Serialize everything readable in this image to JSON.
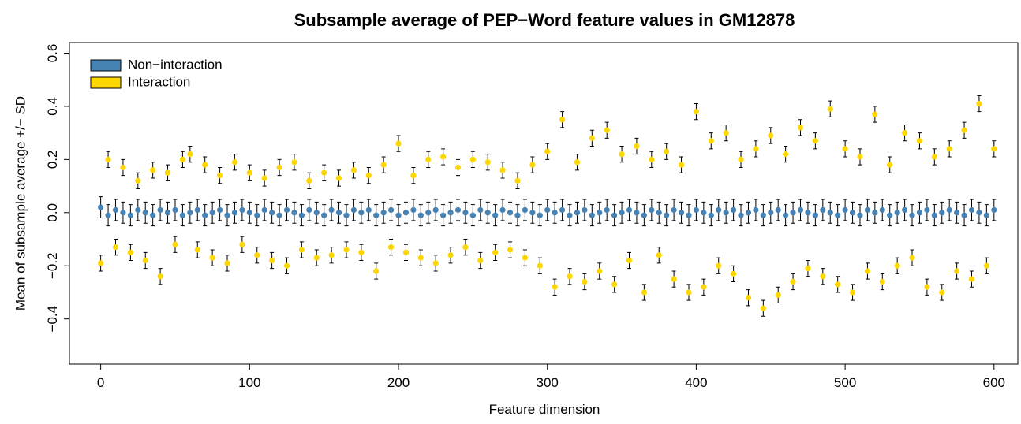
{
  "chart_data": {
    "type": "errorbar-scatter",
    "title": "Subsample average of PEP−Word feature values in GM12878",
    "xlabel": "Feature dimension",
    "ylabel": "Mean of subsample average +/− SD",
    "legend": "top-left",
    "xlim": [
      -21,
      616
    ],
    "xticks": [
      0,
      100,
      200,
      300,
      400,
      500,
      600
    ],
    "ylim": [
      -0.57,
      0.64
    ],
    "yticks": [
      {
        "value": -0.4,
        "label": "−0.4"
      },
      {
        "value": -0.2,
        "label": "−0.2"
      },
      {
        "value": 0,
        "label": "0.0"
      },
      0.2,
      0.4,
      0.6
    ],
    "x": [
      0,
      5,
      10,
      15,
      20,
      25,
      30,
      35,
      40,
      45,
      50,
      55,
      60,
      65,
      70,
      75,
      80,
      85,
      90,
      95,
      100,
      105,
      110,
      115,
      120,
      125,
      130,
      135,
      140,
      145,
      150,
      155,
      160,
      165,
      170,
      175,
      180,
      185,
      190,
      195,
      200,
      205,
      210,
      215,
      220,
      225,
      230,
      235,
      240,
      245,
      250,
      255,
      260,
      265,
      270,
      275,
      280,
      285,
      290,
      295,
      300,
      305,
      310,
      315,
      320,
      325,
      330,
      335,
      340,
      345,
      350,
      355,
      360,
      365,
      370,
      375,
      380,
      385,
      390,
      395,
      400,
      405,
      410,
      415,
      420,
      425,
      430,
      435,
      440,
      445,
      450,
      455,
      460,
      465,
      470,
      475,
      480,
      485,
      490,
      495,
      500,
      505,
      510,
      515,
      520,
      525,
      530,
      535,
      540,
      545,
      550,
      555,
      560,
      565,
      570,
      575,
      580,
      585,
      590,
      595,
      600
    ],
    "series": [
      {
        "name": "Interaction",
        "color": "#FFD700",
        "error": 0.03,
        "values": [
          -0.19,
          0.2,
          -0.13,
          0.17,
          -0.15,
          0.12,
          -0.18,
          0.16,
          -0.24,
          0.15,
          -0.12,
          0.2,
          0.22,
          -0.14,
          0.18,
          -0.17,
          0.14,
          -0.19,
          0.19,
          -0.12,
          0.15,
          -0.16,
          0.13,
          -0.18,
          0.17,
          -0.2,
          0.19,
          -0.14,
          0.12,
          -0.17,
          0.15,
          -0.16,
          0.13,
          -0.14,
          0.16,
          -0.15,
          0.14,
          -0.22,
          0.18,
          -0.13,
          0.26,
          -0.15,
          0.14,
          -0.17,
          0.2,
          -0.19,
          0.21,
          -0.16,
          0.17,
          -0.13,
          0.2,
          -0.18,
          0.19,
          -0.15,
          0.16,
          -0.14,
          0.12,
          -0.17,
          0.18,
          -0.2,
          0.23,
          -0.28,
          0.35,
          -0.24,
          0.19,
          -0.26,
          0.28,
          -0.22,
          0.31,
          -0.27,
          0.22,
          -0.18,
          0.25,
          -0.3,
          0.2,
          -0.16,
          0.23,
          -0.25,
          0.18,
          -0.3,
          0.38,
          -0.28,
          0.27,
          -0.2,
          0.3,
          -0.23,
          0.2,
          -0.32,
          0.24,
          -0.36,
          0.29,
          -0.31,
          0.22,
          -0.26,
          0.32,
          -0.21,
          0.27,
          -0.24,
          0.39,
          -0.27,
          0.24,
          -0.3,
          0.21,
          -0.22,
          0.37,
          -0.26,
          0.18,
          -0.2,
          0.3,
          -0.17,
          0.27,
          -0.28,
          0.21,
          -0.3,
          0.24,
          -0.22,
          0.31,
          -0.25,
          0.41,
          -0.2,
          0.24
        ]
      },
      {
        "name": "Non−interaction",
        "color": "#4682B4",
        "error": 0.04,
        "values": [
          0.02,
          -0.01,
          0.01,
          0,
          -0.01,
          0.01,
          0,
          -0.01,
          0.01,
          0,
          0.01,
          -0.01,
          0,
          0.01,
          -0.01,
          0,
          0.01,
          -0.01,
          0,
          0.01,
          0,
          -0.01,
          0.01,
          0,
          -0.01,
          0.01,
          0,
          -0.01,
          0.01,
          0,
          -0.01,
          0.01,
          0,
          -0.01,
          0.01,
          0,
          0.01,
          -0.01,
          0,
          0.01,
          -0.01,
          0,
          0.01,
          -0.01,
          0,
          0.01,
          -0.01,
          0,
          0.01,
          0,
          -0.01,
          0.01,
          0,
          -0.01,
          0.01,
          0,
          -0.01,
          0.01,
          0,
          -0.01,
          0.01,
          0,
          0.01,
          -0.01,
          0,
          0.01,
          -0.01,
          0,
          0.01,
          -0.01,
          0,
          0.01,
          0,
          -0.01,
          0.01,
          0,
          -0.01,
          0.01,
          0,
          -0.01,
          0.01,
          0,
          -0.01,
          0.01,
          0,
          0.01,
          -0.01,
          0,
          0.01,
          -0.01,
          0,
          0.01,
          -0.01,
          0,
          0.01,
          0,
          -0.01,
          0.01,
          0,
          -0.01,
          0.01,
          0,
          -0.01,
          0.01,
          0,
          0.01,
          -0.01,
          0,
          0.01,
          -0.01,
          0,
          0.01,
          -0.01,
          0,
          0.01,
          0,
          -0.01,
          0.01,
          0,
          -0.01,
          0.01
        ]
      }
    ]
  }
}
